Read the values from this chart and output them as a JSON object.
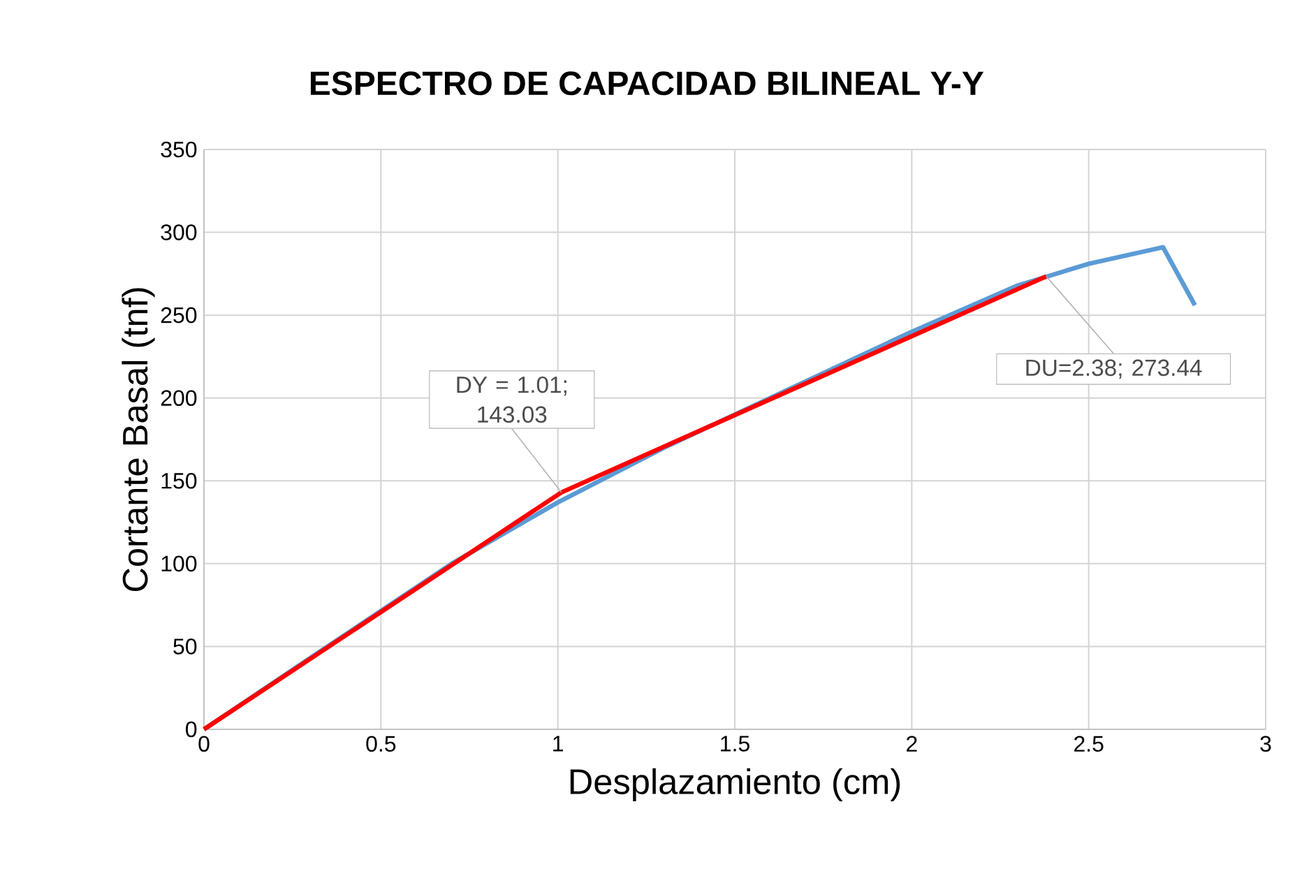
{
  "chart_data": {
    "type": "line",
    "title": "ESPECTRO DE CAPACIDAD BILINEAL Y-Y",
    "xlabel": "Desplazamiento (cm)",
    "ylabel": "Cortante Basal (tnf)",
    "xlim": [
      0,
      3
    ],
    "xticks": [
      0,
      0.5,
      1,
      1.5,
      2,
      2.5,
      3
    ],
    "ylim": [
      0,
      350
    ],
    "yticks": [
      0,
      50,
      100,
      150,
      200,
      250,
      300,
      350
    ],
    "grid": true,
    "marker": "none",
    "line_style": "solid",
    "series": [
      {
        "color": "#5b9bd5",
        "x": [
          0,
          0.3,
          0.7,
          1.0,
          1.3,
          1.5,
          2.0,
          2.3,
          2.5,
          2.71,
          2.8
        ],
        "values": [
          0,
          43,
          100,
          137,
          170,
          190,
          240,
          268,
          281,
          291,
          256
        ]
      },
      {
        "color": "#ff0000",
        "x": [
          0,
          1.01,
          2.38
        ],
        "values": [
          0,
          143.03,
          273.44
        ]
      }
    ],
    "annotations": [
      {
        "text": "DY = 1.01; 143.03",
        "x": 1.01,
        "y": 143.03
      },
      {
        "text": "DU=2.38; 273.44",
        "x": 2.38,
        "y": 273.44
      }
    ]
  }
}
